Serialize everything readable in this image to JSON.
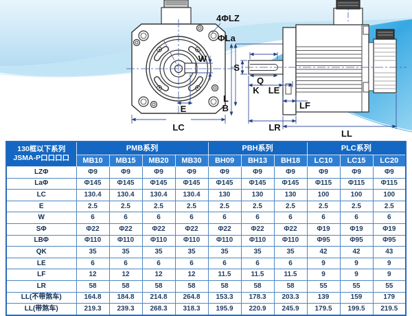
{
  "diagram": {
    "front": {
      "lz_label": "4ΦLZ",
      "la_label": "ΦLa",
      "w_label": "W",
      "e_label": "E",
      "lc_label": "LC"
    },
    "side": {
      "s_label": "S",
      "q_label": "Q",
      "k_label": "K",
      "le_label": "LE",
      "l_label": "L",
      "b_label": "B",
      "lf_label": "LF",
      "lr_label": "LR",
      "ll_label": "LL"
    }
  },
  "table": {
    "corner_title_line1": "130框以下系列",
    "corner_title_line2": "JSMA-P口口口口",
    "groups": [
      {
        "label": "PMB系列",
        "models": [
          "MB10",
          "MB15",
          "MB20",
          "MB30"
        ]
      },
      {
        "label": "PBH系列",
        "models": [
          "BH09",
          "BH13",
          "BH18"
        ]
      },
      {
        "label": "PLC系列",
        "models": [
          "LC10",
          "LC15",
          "LC20"
        ]
      }
    ],
    "rows": [
      {
        "label": "LZΦ",
        "values": [
          "Φ9",
          "Φ9",
          "Φ9",
          "Φ9",
          "Φ9",
          "Φ9",
          "Φ9",
          "Φ9",
          "Φ9",
          "Φ9"
        ]
      },
      {
        "label": "LaΦ",
        "values": [
          "Φ145",
          "Φ145",
          "Φ145",
          "Φ145",
          "Φ145",
          "Φ145",
          "Φ145",
          "Φ115",
          "Φ115",
          "Φ115"
        ]
      },
      {
        "label": "LC",
        "values": [
          "130.4",
          "130.4",
          "130.4",
          "130.4",
          "130",
          "130",
          "130",
          "100",
          "100",
          "100"
        ]
      },
      {
        "label": "E",
        "values": [
          "2.5",
          "2.5",
          "2.5",
          "2.5",
          "2.5",
          "2.5",
          "2.5",
          "2.5",
          "2.5",
          "2.5"
        ]
      },
      {
        "label": "W",
        "values": [
          "6",
          "6",
          "6",
          "6",
          "6",
          "6",
          "6",
          "6",
          "6",
          "6"
        ]
      },
      {
        "label": "SΦ",
        "values": [
          "Φ22",
          "Φ22",
          "Φ22",
          "Φ22",
          "Φ22",
          "Φ22",
          "Φ22",
          "Φ19",
          "Φ19",
          "Φ19"
        ]
      },
      {
        "label": "LBΦ",
        "values": [
          "Φ110",
          "Φ110",
          "Φ110",
          "Φ110",
          "Φ110",
          "Φ110",
          "Φ110",
          "Φ95",
          "Φ95",
          "Φ95"
        ]
      },
      {
        "label": "QK",
        "values": [
          "35",
          "35",
          "35",
          "35",
          "35",
          "35",
          "35",
          "42",
          "42",
          "43"
        ]
      },
      {
        "label": "LE",
        "values": [
          "6",
          "6",
          "6",
          "6",
          "6",
          "6",
          "6",
          "9",
          "9",
          "9"
        ]
      },
      {
        "label": "LF",
        "values": [
          "12",
          "12",
          "12",
          "12",
          "11.5",
          "11.5",
          "11.5",
          "9",
          "9",
          "9"
        ]
      },
      {
        "label": "LR",
        "values": [
          "58",
          "58",
          "58",
          "58",
          "58",
          "58",
          "58",
          "55",
          "55",
          "55"
        ]
      },
      {
        "label": "LL(不带煞车)",
        "values": [
          "164.8",
          "184.8",
          "214.8",
          "264.8",
          "153.3",
          "178.3",
          "203.3",
          "139",
          "159",
          "179"
        ]
      },
      {
        "label": "LL(带煞车)",
        "values": [
          "219.3",
          "239.3",
          "268.3",
          "318.3",
          "195.9",
          "220.9",
          "245.9",
          "179.5",
          "199.5",
          "219.5"
        ]
      }
    ]
  },
  "colors": {
    "header_series_bg": "#1467c2",
    "header_model_bg": "#2e7fd3",
    "table_border": "#4d85c0",
    "table_outer_border": "#2a69b8",
    "value_text": "#1e3a5f",
    "wave_light": "#cfe9f8",
    "wave_bright": "#2fa5e2",
    "dimension_line": "#3b55a0",
    "drawing_line": "#333333"
  }
}
